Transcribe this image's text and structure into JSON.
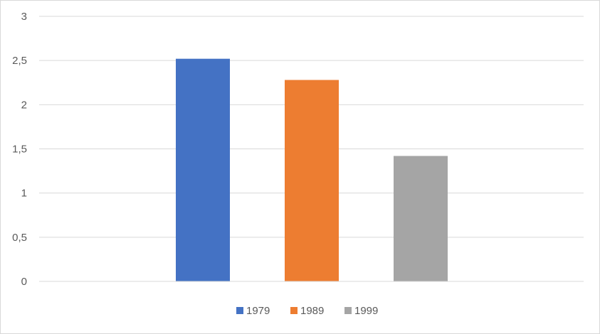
{
  "chart_data": {
    "type": "bar",
    "title": "",
    "xlabel": "",
    "ylabel": "",
    "categories": [
      ""
    ],
    "series": [
      {
        "name": "1979",
        "values": [
          2.52
        ],
        "color": "#4472C4"
      },
      {
        "name": "1989",
        "values": [
          2.28
        ],
        "color": "#ED7D31"
      },
      {
        "name": "1999",
        "values": [
          1.42
        ],
        "color": "#A5A5A5"
      }
    ],
    "ylim": [
      0,
      3
    ],
    "yticks": [
      "0",
      "0,5",
      "1",
      "1,5",
      "2",
      "2,5",
      "3"
    ],
    "grid": true,
    "legend_position": "bottom"
  }
}
